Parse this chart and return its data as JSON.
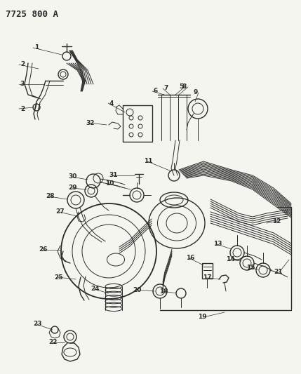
{
  "title": "7725 800 A",
  "title_fontsize": 9,
  "bg_color": "#f5f5f0",
  "line_color": "#2a2a2a",
  "label_fontsize": 6.5,
  "fig_w": 4.29,
  "fig_h": 5.33,
  "dpi": 100
}
